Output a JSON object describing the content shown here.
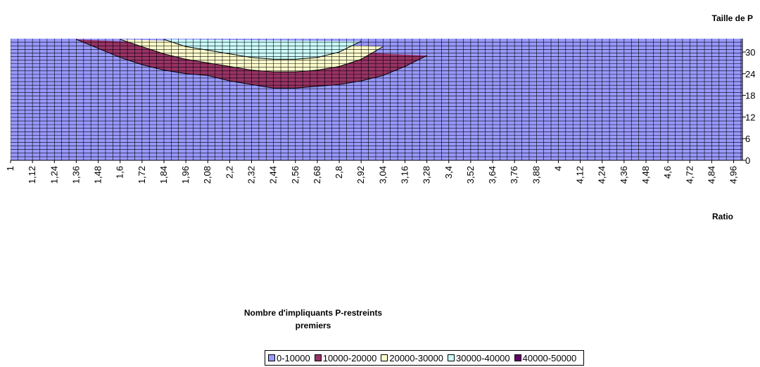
{
  "chart_data": {
    "type": "contour",
    "y_title": "Taille de P",
    "x_title": "Ratio",
    "legend_title": "Nombre d'impliquants P-restreints premiers",
    "categories": [
      "1",
      "1,12",
      "1,24",
      "1,36",
      "1,48",
      "1,6",
      "1,72",
      "1,84",
      "1,96",
      "2,08",
      "2,2",
      "2,32",
      "2,44",
      "2,56",
      "2,68",
      "2,8",
      "2,92",
      "3,04",
      "3,16",
      "3,28",
      "3,4",
      "3,52",
      "3,64",
      "3,76",
      "3,88",
      "4",
      "4,12",
      "4,24",
      "4,36",
      "4,48",
      "4,6",
      "4,72",
      "4,84",
      "4,96"
    ],
    "ylim": [
      0,
      33.7
    ],
    "yticks": [
      0,
      6,
      12,
      18,
      24,
      30
    ],
    "base": {
      "name": "0-10000",
      "color": "#9999ff"
    },
    "series": [
      {
        "name": "10000-20000",
        "color": "#993366",
        "values": [
          null,
          null,
          null,
          33.5,
          31,
          28.5,
          26.5,
          25,
          24,
          23.5,
          22,
          21,
          20,
          20,
          20.5,
          21,
          22,
          23.5,
          26,
          29,
          null,
          null,
          null,
          null,
          null,
          null,
          null,
          null,
          null,
          null,
          null,
          null,
          null,
          null
        ]
      },
      {
        "name": "20000-30000",
        "color": "#ffffcc",
        "values": [
          null,
          null,
          null,
          null,
          null,
          33.5,
          31.5,
          29.5,
          28,
          27,
          26,
          25,
          24.5,
          24.5,
          25,
          26,
          28,
          31.5,
          null,
          null,
          null,
          null,
          null,
          null,
          null,
          null,
          null,
          null,
          null,
          null,
          null,
          null,
          null,
          null
        ]
      },
      {
        "name": "30000-40000",
        "color": "#ccffff",
        "values": [
          null,
          null,
          null,
          null,
          null,
          null,
          null,
          33.5,
          31.5,
          30.5,
          29.5,
          28.5,
          28,
          28,
          28.5,
          30,
          33,
          null,
          null,
          null,
          null,
          null,
          null,
          null,
          null,
          null,
          null,
          null,
          null,
          null,
          null,
          null,
          null,
          null
        ]
      },
      {
        "name": "40000-50000",
        "color": "#660066",
        "values": [
          null,
          null,
          null,
          null,
          null,
          null,
          null,
          null,
          null,
          null,
          null,
          null,
          null,
          null,
          null,
          null,
          null,
          null,
          null,
          null,
          null,
          null,
          null,
          null,
          null,
          null,
          null,
          null,
          null,
          null,
          null,
          null,
          null,
          null
        ]
      }
    ]
  }
}
